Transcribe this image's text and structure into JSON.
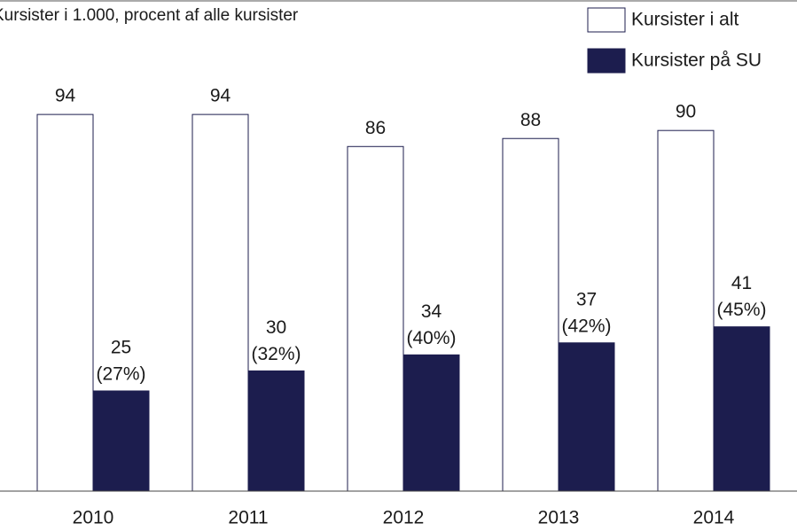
{
  "chart_data": {
    "type": "bar",
    "title": "Kursister i 1.000, procent af alle kursister",
    "categories": [
      "2010",
      "2011",
      "2012",
      "2013",
      "2014"
    ],
    "series": [
      {
        "name": "Kursister i alt",
        "color": "#ffffff",
        "values": [
          94,
          94,
          86,
          88,
          90
        ]
      },
      {
        "name": "Kursister på SU",
        "color": "#1c1d4e",
        "values": [
          25,
          30,
          34,
          37,
          41
        ],
        "value_labels": [
          [
            "25",
            "(27%)"
          ],
          [
            "30",
            "(32%)"
          ],
          [
            "34",
            "(40%)"
          ],
          [
            "37",
            "(42%)"
          ],
          [
            "41",
            "(45%)"
          ]
        ]
      }
    ],
    "ylim": [
      0,
      100
    ],
    "legend": "top-right"
  }
}
